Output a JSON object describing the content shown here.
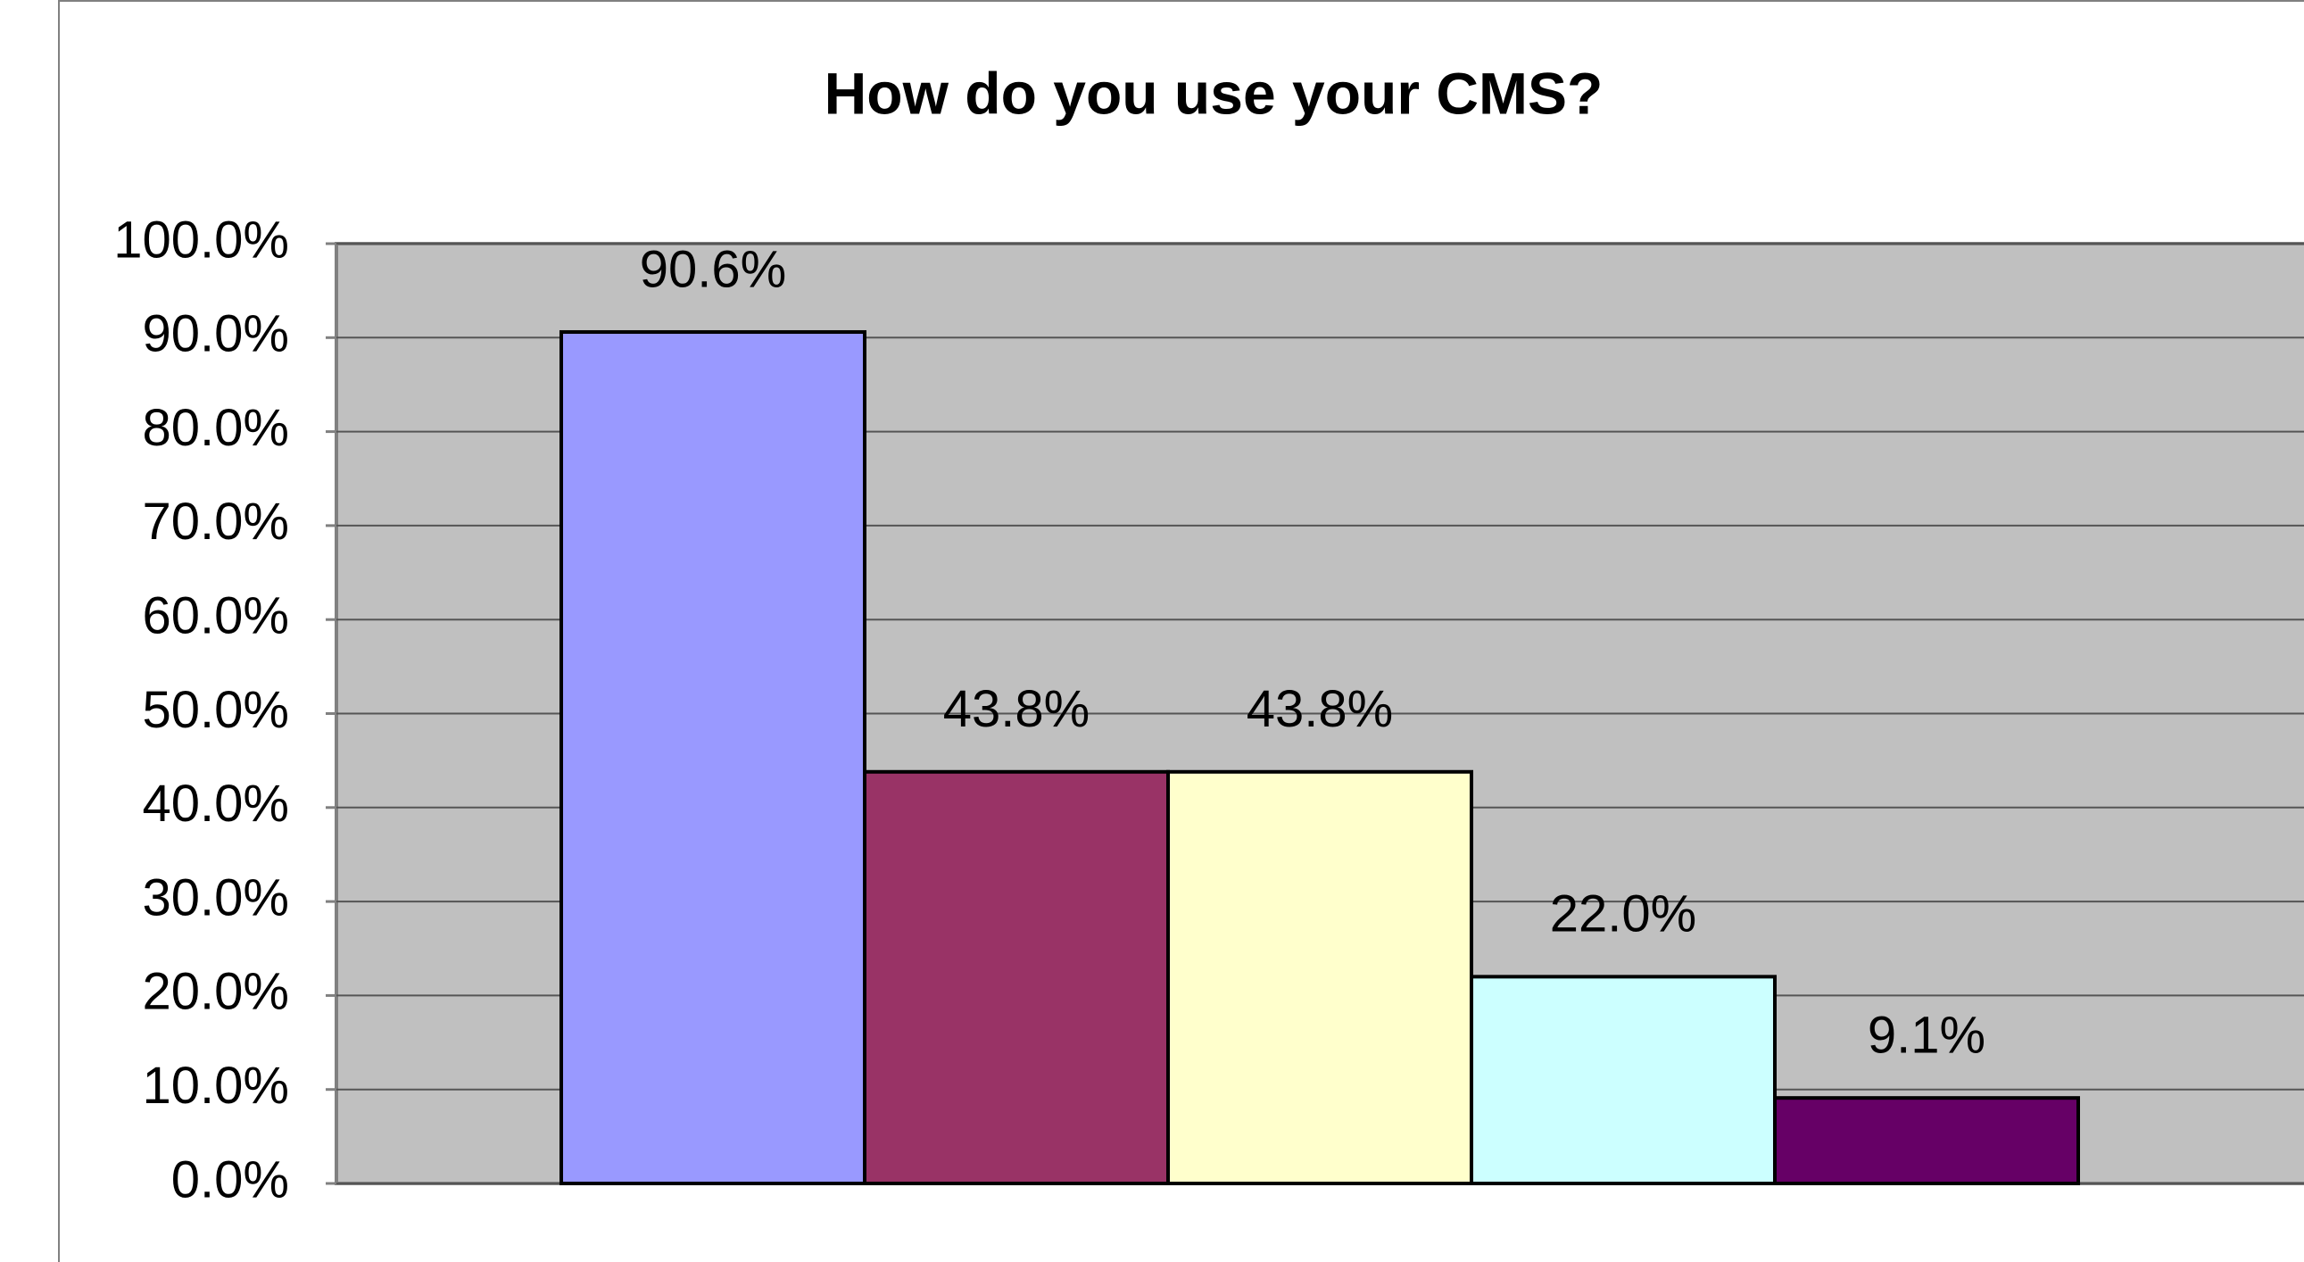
{
  "chart_data": {
    "type": "bar",
    "title": "How do you use your CMS?",
    "values": [
      90.6,
      43.8,
      43.8,
      22.0,
      9.1
    ],
    "value_labels": [
      "90.6%",
      "43.8%",
      "43.8%",
      "22.0%",
      "9.1%"
    ],
    "colors": [
      "#9999ff",
      "#993366",
      "#ffffcc",
      "#ccffff",
      "#660066"
    ],
    "ylim": [
      0,
      100
    ],
    "yticks": [
      {
        "value": 0,
        "label": "0.0%"
      },
      {
        "value": 10,
        "label": "10.0%"
      },
      {
        "value": 20,
        "label": "20.0%"
      },
      {
        "value": 30,
        "label": "30.0%"
      },
      {
        "value": 40,
        "label": "40.0%"
      },
      {
        "value": 50,
        "label": "50.0%"
      },
      {
        "value": 60,
        "label": "60.0%"
      },
      {
        "value": 70,
        "label": "70.0%"
      },
      {
        "value": 80,
        "label": "80.0%"
      },
      {
        "value": 90,
        "label": "90.0%"
      },
      {
        "value": 100,
        "label": "100.0%"
      }
    ],
    "grid": true
  }
}
